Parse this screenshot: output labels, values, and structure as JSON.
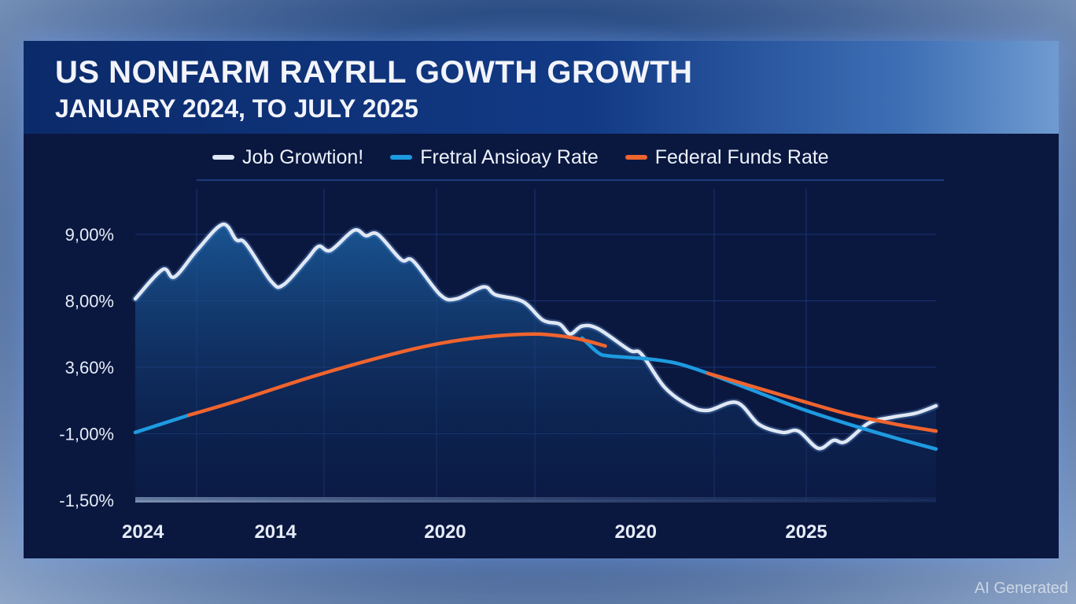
{
  "watermark": "AI Generated",
  "chart_data": {
    "type": "line",
    "title": "US NONFARM RAYRLL GOWTH GROWTH",
    "subtitle": "JANUARY 2024, TO JULY 2025",
    "xlabel": "",
    "ylabel": "",
    "xlim": [
      0,
      100
    ],
    "ylim": [
      0,
      4
    ],
    "y_scale_note": "y values expressed in tick-level units (0 = -1,50%, 4 = 9,00%)",
    "y_ticks": [
      {
        "level": 4,
        "label": "9,00%"
      },
      {
        "level": 3,
        "label": "8,00%"
      },
      {
        "level": 2,
        "label": "3,60%"
      },
      {
        "level": 1,
        "label": "-1,00%"
      },
      {
        "level": 0,
        "label": "-1,50%"
      }
    ],
    "x_ticks": [
      {
        "x": 1.6,
        "label": "2024"
      },
      {
        "x": 17.5,
        "label": "2014"
      },
      {
        "x": 38.7,
        "label": "2020"
      },
      {
        "x": 62.5,
        "label": "2020"
      },
      {
        "x": 83.8,
        "label": "2025"
      }
    ],
    "grid": true,
    "legend_position": "top",
    "series": [
      {
        "name": "Job Growtion!",
        "color": "#dfe8f4",
        "fill": true,
        "segments": [
          [
            [
              0,
              3.03
            ],
            [
              3.4,
              3.47
            ],
            [
              4.9,
              3.36
            ],
            [
              7.7,
              3.76
            ],
            [
              10.9,
              4.15
            ],
            [
              12.6,
              3.92
            ],
            [
              13.8,
              3.86
            ],
            [
              17.0,
              3.29
            ],
            [
              18.5,
              3.24
            ],
            [
              21.4,
              3.62
            ],
            [
              22.9,
              3.82
            ],
            [
              24.4,
              3.76
            ],
            [
              27.3,
              4.06
            ],
            [
              28.8,
              3.98
            ],
            [
              30.3,
              4.0
            ],
            [
              33.2,
              3.62
            ],
            [
              34.7,
              3.6
            ],
            [
              38.1,
              3.09
            ],
            [
              40.1,
              3.03
            ],
            [
              43.5,
              3.21
            ],
            [
              45.0,
              3.09
            ],
            [
              48.4,
              2.99
            ],
            [
              50.9,
              2.71
            ],
            [
              53.0,
              2.65
            ],
            [
              54.3,
              2.5
            ],
            [
              55.8,
              2.62
            ],
            [
              57.8,
              2.58
            ],
            [
              61.7,
              2.26
            ],
            [
              63.2,
              2.2
            ],
            [
              66.1,
              1.7
            ],
            [
              69.1,
              1.43
            ],
            [
              71.5,
              1.35
            ],
            [
              75.1,
              1.47
            ],
            [
              77.9,
              1.14
            ],
            [
              80.8,
              1.02
            ],
            [
              82.8,
              1.04
            ],
            [
              85.3,
              0.78
            ],
            [
              87.2,
              0.9
            ],
            [
              88.7,
              0.88
            ],
            [
              91.6,
              1.16
            ],
            [
              94.6,
              1.25
            ],
            [
              97.5,
              1.31
            ],
            [
              100,
              1.42
            ]
          ]
        ]
      },
      {
        "name": "Fretral Ansioay Rate",
        "color": "#1e9be0",
        "fill": false,
        "segments": [
          [
            [
              0,
              1.02
            ],
            [
              6.7,
              1.28
            ]
          ],
          [
            [
              55.8,
              2.44
            ],
            [
              57.8,
              2.22
            ],
            [
              59.2,
              2.17
            ],
            [
              63.7,
              2.13
            ],
            [
              67.6,
              2.06
            ],
            [
              71.5,
              1.91
            ],
            [
              77.4,
              1.64
            ],
            [
              83.3,
              1.37
            ],
            [
              89.2,
              1.14
            ],
            [
              95.1,
              0.93
            ],
            [
              100,
              0.77
            ]
          ]
        ]
      },
      {
        "name": "Federal Funds Rate",
        "color": "#f0642e",
        "fill": false,
        "segments": [
          [
            [
              6.7,
              1.28
            ],
            [
              12.6,
              1.49
            ],
            [
              22.4,
              1.87
            ],
            [
              32.2,
              2.2
            ],
            [
              38.1,
              2.36
            ],
            [
              44.0,
              2.46
            ],
            [
              49.9,
              2.5
            ],
            [
              53.8,
              2.46
            ],
            [
              56.3,
              2.4
            ],
            [
              58.7,
              2.32
            ]
          ],
          [
            [
              71.5,
              1.91
            ],
            [
              77.4,
              1.7
            ],
            [
              83.3,
              1.49
            ],
            [
              89.2,
              1.29
            ],
            [
              95.1,
              1.14
            ],
            [
              100,
              1.04
            ]
          ]
        ]
      }
    ]
  }
}
